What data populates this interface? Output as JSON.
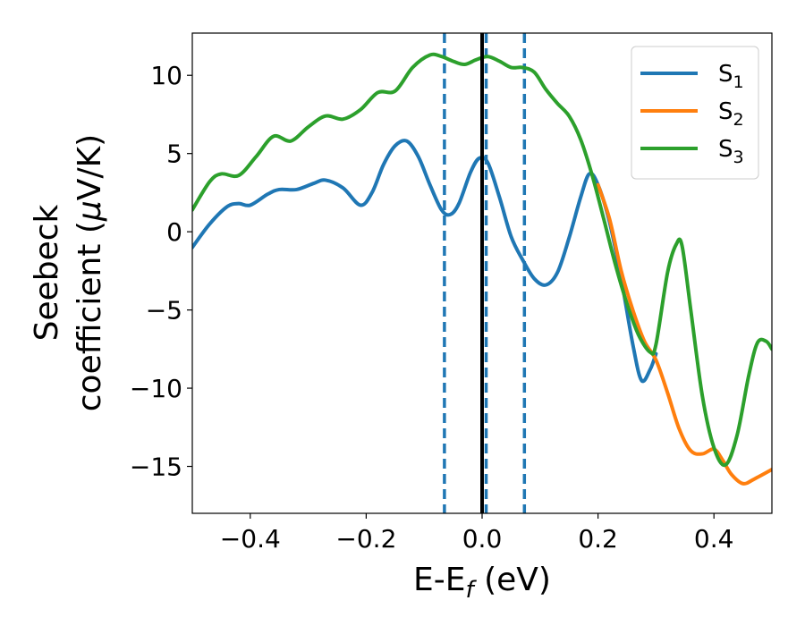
{
  "chart_data": {
    "type": "line",
    "x_label": {
      "main": "E-E",
      "sub": "f",
      "tail": " (eV)"
    },
    "y_label": {
      "line1": "Seebeck",
      "line2_pre": "coefficient  (",
      "line2_mu": "μ",
      "line2_post": "V/K)"
    },
    "xlim": [
      -0.5,
      0.5
    ],
    "ylim": [
      -18,
      12.7
    ],
    "x_ticks": [
      {
        "v": -0.4,
        "label": "−0.4"
      },
      {
        "v": -0.2,
        "label": "−0.2"
      },
      {
        "v": 0.0,
        "label": "0.0"
      },
      {
        "v": 0.2,
        "label": "0.2"
      },
      {
        "v": 0.4,
        "label": "0.4"
      }
    ],
    "y_ticks": [
      {
        "v": 10,
        "label": "10"
      },
      {
        "v": 5,
        "label": "5"
      },
      {
        "v": 0,
        "label": "0"
      },
      {
        "v": -5,
        "label": "−5"
      },
      {
        "v": -10,
        "label": "−10"
      },
      {
        "v": -15,
        "label": "−15"
      }
    ],
    "vertical_lines": [
      {
        "x": -0.065,
        "style": "dashed",
        "color": "#1f77b4"
      },
      {
        "x": 0.007,
        "style": "dashed",
        "color": "#1f77b4"
      },
      {
        "x": 0.073,
        "style": "dashed",
        "color": "#1f77b4"
      },
      {
        "x": 0.0,
        "style": "solid",
        "color": "#000000"
      }
    ],
    "legend_position": "top-right",
    "series": [
      {
        "name": "S",
        "sub": "1",
        "color": "#1f77b4",
        "points": [
          [
            -0.5,
            -1.0
          ],
          [
            -0.47,
            0.5
          ],
          [
            -0.44,
            1.6
          ],
          [
            -0.42,
            1.8
          ],
          [
            -0.4,
            1.7
          ],
          [
            -0.37,
            2.4
          ],
          [
            -0.35,
            2.7
          ],
          [
            -0.32,
            2.7
          ],
          [
            -0.29,
            3.1
          ],
          [
            -0.27,
            3.3
          ],
          [
            -0.24,
            2.8
          ],
          [
            -0.21,
            1.7
          ],
          [
            -0.19,
            2.5
          ],
          [
            -0.17,
            4.3
          ],
          [
            -0.15,
            5.5
          ],
          [
            -0.13,
            5.8
          ],
          [
            -0.11,
            4.8
          ],
          [
            -0.09,
            3.0
          ],
          [
            -0.07,
            1.4
          ],
          [
            -0.055,
            1.1
          ],
          [
            -0.04,
            1.8
          ],
          [
            -0.02,
            3.8
          ],
          [
            -0.005,
            4.7
          ],
          [
            0.01,
            4.4
          ],
          [
            0.03,
            2.2
          ],
          [
            0.05,
            -0.3
          ],
          [
            0.07,
            -1.8
          ],
          [
            0.09,
            -3.0
          ],
          [
            0.11,
            -3.4
          ],
          [
            0.13,
            -2.6
          ],
          [
            0.15,
            -0.4
          ],
          [
            0.17,
            2.2
          ],
          [
            0.185,
            3.7
          ],
          [
            0.2,
            3.0
          ],
          [
            0.22,
            0.6
          ],
          [
            0.24,
            -3.0
          ],
          [
            0.26,
            -7.2
          ],
          [
            0.275,
            -9.5
          ],
          [
            0.29,
            -8.8
          ],
          [
            0.3,
            -7.8
          ]
        ]
      },
      {
        "name": "S",
        "sub": "2",
        "color": "#ff7f0e",
        "points": [
          [
            0.2,
            3.0
          ],
          [
            0.22,
            0.8
          ],
          [
            0.24,
            -2.5
          ],
          [
            0.26,
            -5.0
          ],
          [
            0.28,
            -7.0
          ],
          [
            0.3,
            -8.2
          ],
          [
            0.32,
            -10.3
          ],
          [
            0.34,
            -12.6
          ],
          [
            0.36,
            -14.0
          ],
          [
            0.38,
            -14.2
          ],
          [
            0.4,
            -13.9
          ],
          [
            0.415,
            -14.6
          ],
          [
            0.43,
            -15.5
          ],
          [
            0.45,
            -16.1
          ],
          [
            0.47,
            -15.8
          ],
          [
            0.5,
            -15.2
          ]
        ]
      },
      {
        "name": "S",
        "sub": "3",
        "color": "#2ca02c",
        "points": [
          [
            -0.5,
            1.4
          ],
          [
            -0.47,
            3.2
          ],
          [
            -0.45,
            3.7
          ],
          [
            -0.42,
            3.6
          ],
          [
            -0.39,
            4.8
          ],
          [
            -0.36,
            6.1
          ],
          [
            -0.33,
            5.8
          ],
          [
            -0.3,
            6.7
          ],
          [
            -0.27,
            7.4
          ],
          [
            -0.24,
            7.2
          ],
          [
            -0.21,
            7.8
          ],
          [
            -0.18,
            8.9
          ],
          [
            -0.15,
            9.0
          ],
          [
            -0.12,
            10.5
          ],
          [
            -0.09,
            11.3
          ],
          [
            -0.07,
            11.2
          ],
          [
            -0.05,
            10.9
          ],
          [
            -0.03,
            10.7
          ],
          [
            -0.01,
            11.0
          ],
          [
            0.01,
            11.2
          ],
          [
            0.03,
            10.9
          ],
          [
            0.05,
            10.5
          ],
          [
            0.07,
            10.5
          ],
          [
            0.09,
            10.2
          ],
          [
            0.11,
            9.1
          ],
          [
            0.13,
            8.2
          ],
          [
            0.15,
            7.4
          ],
          [
            0.17,
            5.9
          ],
          [
            0.19,
            3.6
          ],
          [
            0.21,
            0.8
          ],
          [
            0.23,
            -2.1
          ],
          [
            0.25,
            -4.6
          ],
          [
            0.27,
            -6.6
          ],
          [
            0.29,
            -7.7
          ],
          [
            0.3,
            -7.2
          ],
          [
            0.32,
            -2.6
          ],
          [
            0.335,
            -0.8
          ],
          [
            0.345,
            -0.9
          ],
          [
            0.36,
            -5.0
          ],
          [
            0.38,
            -10.5
          ],
          [
            0.4,
            -13.8
          ],
          [
            0.42,
            -14.9
          ],
          [
            0.44,
            -13.0
          ],
          [
            0.46,
            -9.2
          ],
          [
            0.475,
            -7.1
          ],
          [
            0.49,
            -7.0
          ],
          [
            0.5,
            -7.5
          ]
        ]
      }
    ]
  }
}
